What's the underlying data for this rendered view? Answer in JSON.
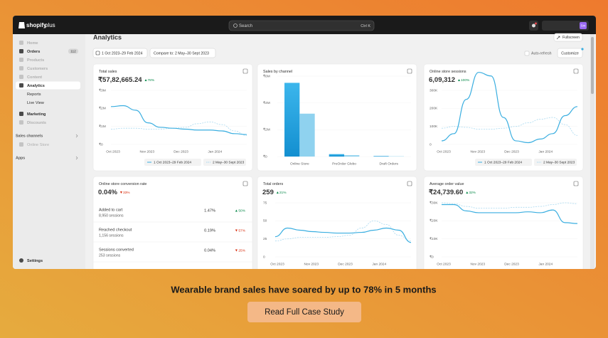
{
  "banner": {
    "headline": "Wearable brand sales have soared by up to 78% in 5 months",
    "button": "Read Full Case Study"
  },
  "topbar": {
    "brand": "shopify",
    "brand_suffix": "plus",
    "search": "Search",
    "shortcut": "Ctrl K",
    "avatar": "Sm"
  },
  "sidebar": {
    "items": [
      {
        "label": "Home",
        "muted": true
      },
      {
        "label": "Orders",
        "badge": "112"
      },
      {
        "label": "Products",
        "muted": true
      },
      {
        "label": "Customers",
        "muted": true
      },
      {
        "label": "Content",
        "muted": true
      },
      {
        "label": "Analytics",
        "active": true
      },
      {
        "label": "Reports",
        "sub": true
      },
      {
        "label": "Live View",
        "sub": true
      },
      {
        "label": "Marketing"
      },
      {
        "label": "Discounts",
        "muted": true
      }
    ],
    "sections": [
      {
        "label": "Sales channels",
        "items": [
          "Online Store"
        ]
      },
      {
        "label": "Apps",
        "items": []
      }
    ],
    "settings": "Settings"
  },
  "header": {
    "title": "Analytics",
    "fullscreen": "Fullscreen",
    "date_range": "1 Oct 2023–29 Feb 2024",
    "compare": "Compare to: 2 May–30 Sept 2023",
    "auto_refresh": "Auto-refresh",
    "customize": "Customize"
  },
  "cards": [
    {
      "type": "line",
      "title": "Total sales",
      "value": "₹57,82,665.24",
      "change": "78%",
      "trend": "up",
      "legend": true,
      "ylim": [
        0,
        3000000
      ],
      "yticks": [
        {
          "value": 0,
          "label": "₹0"
        },
        {
          "value": 1000000,
          "label": "₹1M"
        },
        {
          "value": 2000000,
          "label": "₹2M"
        },
        {
          "value": 3000000,
          "label": "₹3M"
        }
      ],
      "xlabels": [
        "Oct 2023",
        "Nov 2023",
        "Dec 2023",
        "Jan 2024"
      ],
      "series": [
        {
          "name": "1 Oct 2023–29 Feb 2024",
          "color": "#3aaee0",
          "dashed": false,
          "values": [
            2100000,
            2150000,
            1900000,
            1200000,
            950000,
            900000,
            850000,
            800000,
            800000,
            750000,
            600000,
            550000
          ]
        },
        {
          "name": "2 May–30 Sept 2023",
          "color": "#a9d9f0",
          "dashed": true,
          "values": [
            850000,
            900000,
            900000,
            850000,
            850000,
            900000,
            950000,
            1150000,
            1250000,
            1100000,
            750000,
            500000
          ]
        }
      ]
    },
    {
      "type": "bar",
      "title": "Sales by channel",
      "ylim": [
        0,
        6000000
      ],
      "yticks": [
        {
          "value": 0,
          "label": "₹0"
        },
        {
          "value": 2000000,
          "label": "₹2M"
        },
        {
          "value": 4000000,
          "label": "₹4M"
        },
        {
          "value": 6000000,
          "label": "₹6M"
        }
      ],
      "categories": [
        "Online Store",
        "PreOrder Globo",
        "Draft Orders"
      ],
      "series": [
        {
          "color": "#1ca3e0",
          "values": [
            5500000,
            180000,
            40000
          ]
        },
        {
          "color": "#8fd2ef",
          "values": [
            3200000,
            100000,
            20000
          ]
        }
      ]
    },
    {
      "type": "line",
      "title": "Online store sessions",
      "value": "6,09,312",
      "change": "100%",
      "trend": "up",
      "legend": true,
      "ylim": [
        0,
        300000
      ],
      "yticks": [
        {
          "value": 0,
          "label": "0"
        },
        {
          "value": 100000,
          "label": "100K"
        },
        {
          "value": 200000,
          "label": "200K"
        },
        {
          "value": 300000,
          "label": "300K"
        }
      ],
      "xlabels": [
        "Oct 2023",
        "Nov 2023",
        "Dec 2023",
        "Jan 2024"
      ],
      "series": [
        {
          "name": "1 Oct 2023–29 Feb 2024",
          "color": "#3aaee0",
          "dashed": false,
          "values": [
            20000,
            60000,
            250000,
            400000,
            380000,
            150000,
            20000,
            10000,
            30000,
            60000,
            160000,
            210000
          ]
        },
        {
          "name": "2 May–30 Sept 2023",
          "color": "#a9d9f0",
          "dashed": true,
          "values": [
            90000,
            100000,
            95000,
            85000,
            85000,
            90000,
            100000,
            120000,
            140000,
            150000,
            110000,
            50000
          ]
        }
      ]
    },
    {
      "type": "funnel",
      "title": "Online store conversion rate",
      "value": "0.04%",
      "change": "33%",
      "trend": "down",
      "rows": [
        {
          "label": "Added to cart",
          "sessions": "8,950 sessions",
          "rate": "1.47%",
          "change": "50%",
          "trend": "up"
        },
        {
          "label": "Reached checkout",
          "sessions": "1,156 sessions",
          "rate": "0.19%",
          "change": "57%",
          "trend": "down"
        },
        {
          "label": "Sessions converted",
          "sessions": "253 sessions",
          "rate": "0.04%",
          "change": "25%",
          "trend": "down"
        }
      ]
    },
    {
      "type": "line",
      "title": "Total orders",
      "value": "259",
      "change": "21%",
      "trend": "up",
      "legend": false,
      "ylim": [
        0,
        75
      ],
      "yticks": [
        0,
        25,
        50,
        75
      ],
      "xlabels": [
        "Oct 2023",
        "Nov 2023",
        "Dec 2023",
        "Jan 2024"
      ],
      "series": [
        {
          "color": "#3aaee0",
          "dashed": false,
          "values": [
            28,
            40,
            37,
            35,
            34,
            33,
            33,
            34,
            37,
            40,
            37,
            20
          ]
        },
        {
          "color": "#a9d9f0",
          "dashed": true,
          "values": [
            22,
            25,
            27,
            27,
            27,
            28,
            30,
            40,
            50,
            45,
            30,
            22
          ]
        }
      ]
    },
    {
      "type": "line",
      "title": "Average order value",
      "value": "₹24,739.60",
      "change": "32%",
      "trend": "up",
      "legend": false,
      "ylim": [
        0,
        30000
      ],
      "yticks": [
        {
          "value": 0,
          "label": "₹0"
        },
        {
          "value": 10000,
          "label": "₹10K"
        },
        {
          "value": 20000,
          "label": "₹20K"
        },
        {
          "value": 30000,
          "label": "₹30K"
        }
      ],
      "xlabels": [
        "Oct 2023",
        "Nov 2023",
        "Dec 2023",
        "Jan 2024"
      ],
      "series": [
        {
          "color": "#3aaee0",
          "dashed": false,
          "values": [
            29000,
            29000,
            25500,
            24500,
            24500,
            24500,
            24500,
            25000,
            24500,
            26000,
            19000,
            18500
          ]
        },
        {
          "color": "#a9d9f0",
          "dashed": true,
          "values": [
            30000,
            29500,
            28000,
            27000,
            27000,
            27000,
            27500,
            27500,
            28000,
            29000,
            30000,
            29500
          ]
        }
      ]
    }
  ]
}
